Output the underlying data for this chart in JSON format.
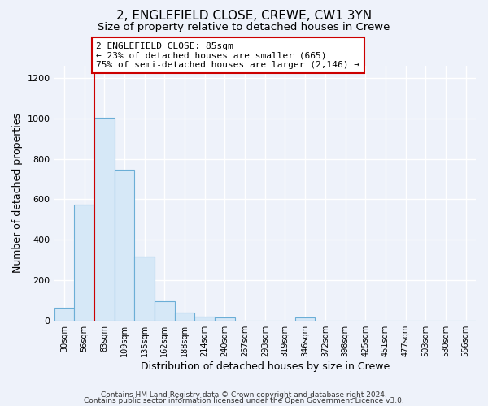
{
  "title": "2, ENGLEFIELD CLOSE, CREWE, CW1 3YN",
  "subtitle": "Size of property relative to detached houses in Crewe",
  "xlabel": "Distribution of detached houses by size in Crewe",
  "ylabel": "Number of detached properties",
  "bar_labels": [
    "30sqm",
    "56sqm",
    "83sqm",
    "109sqm",
    "135sqm",
    "162sqm",
    "188sqm",
    "214sqm",
    "240sqm",
    "267sqm",
    "293sqm",
    "319sqm",
    "346sqm",
    "372sqm",
    "398sqm",
    "425sqm",
    "451sqm",
    "477sqm",
    "503sqm",
    "530sqm",
    "556sqm"
  ],
  "bar_values": [
    65,
    575,
    1005,
    745,
    315,
    95,
    40,
    20,
    14,
    0,
    0,
    0,
    14,
    0,
    0,
    0,
    0,
    0,
    0,
    0,
    0
  ],
  "bar_color": "#d6e8f7",
  "bar_edge_color": "#6baed6",
  "annotation_text": "2 ENGLEFIELD CLOSE: 85sqm\n← 23% of detached houses are smaller (665)\n75% of semi-detached houses are larger (2,146) →",
  "annotation_box_color": "white",
  "annotation_box_edge_color": "#cc0000",
  "red_line_color": "#cc0000",
  "ylim": [
    0,
    1260
  ],
  "yticks": [
    0,
    200,
    400,
    600,
    800,
    1000,
    1200
  ],
  "footer_line1": "Contains HM Land Registry data © Crown copyright and database right 2024.",
  "footer_line2": "Contains public sector information licensed under the Open Government Licence v3.0.",
  "background_color": "#eef2fa",
  "grid_color": "#ffffff",
  "title_fontsize": 11,
  "subtitle_fontsize": 9.5,
  "annotation_fontsize": 8
}
